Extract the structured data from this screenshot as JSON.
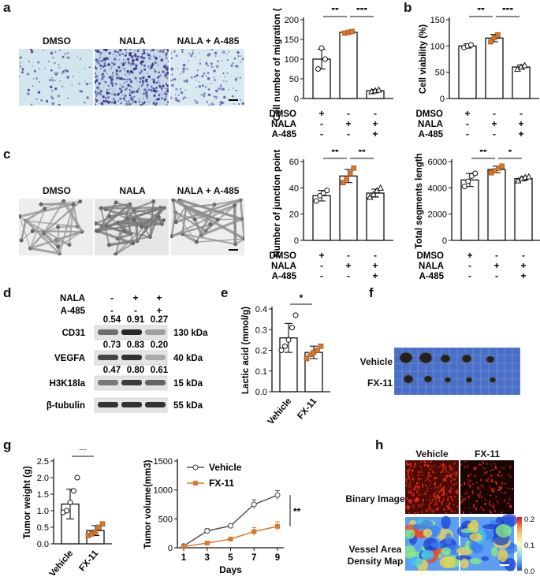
{
  "panels": {
    "a": "a",
    "b": "b",
    "c": "c",
    "d": "d",
    "e": "e",
    "f": "f",
    "g": "g",
    "h": "h"
  },
  "panel_a": {
    "images": [
      "DMSO",
      "NALA",
      "NALA + A-485"
    ]
  },
  "panel_c": {
    "images": [
      "DMSO",
      "NALA",
      "NALA + A-485"
    ]
  },
  "treat_rows": {
    "labels": [
      "DMSO",
      "NALA",
      "A-485"
    ],
    "signs": [
      [
        "+",
        "-",
        "-"
      ],
      [
        "-",
        "+",
        "+"
      ],
      [
        "-",
        "-",
        "+"
      ]
    ]
  },
  "panel_d": {
    "header_labels": [
      "NALA",
      "A-485"
    ],
    "header_signs": [
      [
        "-",
        "+",
        "+"
      ],
      [
        "-",
        "-",
        "+"
      ]
    ],
    "blots": [
      {
        "name": "CD31",
        "kda": "130 kDa",
        "values": [
          "0.54",
          "0.91",
          "0.27"
        ]
      },
      {
        "name": "VEGFA",
        "kda": "40 kDa",
        "values": [
          "0.73",
          "0.83",
          "0.20"
        ]
      },
      {
        "name": "H3K18la",
        "kda": "15 kDa",
        "values": [
          "0.47",
          "0.80",
          "0.61"
        ]
      },
      {
        "name": "β-tubulin",
        "kda": "55 kDa",
        "values": []
      }
    ]
  },
  "panel_f": {
    "rows": [
      "Vehicle",
      "FX-11"
    ]
  },
  "panel_h": {
    "cols": [
      "Vehicle",
      "FX-11"
    ],
    "rows": [
      "Binary Image",
      "Vessel Area",
      "Density Map"
    ],
    "scale": [
      "0.2",
      "0.1",
      "0.0"
    ]
  },
  "colors": {
    "accent": "#d9782d",
    "bar": "#ffffff",
    "axis": "#111111"
  },
  "chart_data": [
    {
      "id": "a_migration",
      "type": "bar",
      "ylabel": "Cell number of migration (%)",
      "ylim": [
        0,
        200
      ],
      "yticks": [
        "0",
        "50",
        "100",
        "150",
        "200"
      ],
      "categories": [
        "DMSO",
        "NALA",
        "NALA + A-485"
      ],
      "values": [
        100,
        168,
        20
      ],
      "errors": [
        25,
        3,
        3
      ],
      "points": [
        [
          75,
          128,
          100
        ],
        [
          166,
          168,
          170
        ],
        [
          18,
          20,
          22
        ]
      ],
      "sig": [
        "**",
        "***"
      ]
    },
    {
      "id": "b_viability",
      "type": "bar",
      "ylabel": "Cell viability (%)",
      "ylim": [
        0,
        150
      ],
      "yticks": [
        "0",
        "50",
        "100",
        "150"
      ],
      "categories": [
        "DMSO",
        "NALA",
        "NALA + A-485"
      ],
      "values": [
        100,
        115,
        60
      ],
      "errors": [
        4,
        7,
        4
      ],
      "points": [
        [
          97,
          100,
          102
        ],
        [
          108,
          116,
          121
        ],
        [
          56,
          60,
          63
        ]
      ],
      "sig": [
        "**",
        "***"
      ]
    },
    {
      "id": "c_junction",
      "type": "bar",
      "ylabel": "Number of junction points",
      "ylim": [
        0,
        60
      ],
      "yticks": [
        "0",
        "20",
        "40",
        "60"
      ],
      "categories": [
        "DMSO",
        "NALA",
        "NALA + A-485"
      ],
      "values": [
        34,
        49,
        36
      ],
      "errors": [
        4,
        5,
        3
      ],
      "points": [
        [
          30,
          34,
          36,
          38
        ],
        [
          44,
          47,
          51,
          55
        ],
        [
          33,
          35,
          38,
          40
        ]
      ],
      "sig": [
        "**",
        "**"
      ]
    },
    {
      "id": "c_segments",
      "type": "bar",
      "ylabel": "Total segments length",
      "ylim": [
        0,
        6000
      ],
      "yticks": [
        "0",
        "2000",
        "4000",
        "6000"
      ],
      "categories": [
        "DMSO",
        "NALA",
        "NALA + A-485"
      ],
      "values": [
        4600,
        5400,
        4700
      ],
      "errors": [
        500,
        250,
        150
      ],
      "points": [
        [
          4100,
          4500,
          4900,
          5100
        ],
        [
          5150,
          5300,
          5500,
          5650
        ],
        [
          4550,
          4700,
          4800,
          4850
        ]
      ],
      "sig": [
        "**",
        "*"
      ]
    },
    {
      "id": "e_lactic",
      "type": "bar",
      "ylabel": "Lactic acid (mmol/g)",
      "ylim": [
        0,
        0.4
      ],
      "yticks": [
        "0.0",
        "0.1",
        "0.2",
        "0.3",
        "0.4"
      ],
      "categories": [
        "Vehicle",
        "FX-11"
      ],
      "values": [
        0.26,
        0.19
      ],
      "errors": [
        0.07,
        0.03
      ],
      "points": [
        [
          0.2,
          0.22,
          0.25,
          0.31,
          0.37
        ],
        [
          0.16,
          0.18,
          0.19,
          0.2,
          0.22
        ]
      ],
      "sig": [
        "*"
      ]
    },
    {
      "id": "g_weight",
      "type": "bar",
      "ylabel": "Tumor weight (g)",
      "ylim": [
        0,
        2.5
      ],
      "yticks": [
        "0.0",
        "0.5",
        "1.0",
        "1.5",
        "2.0",
        "2.5"
      ],
      "categories": [
        "Vehicle",
        "FX-11"
      ],
      "values": [
        1.2,
        0.4
      ],
      "errors": [
        0.45,
        0.15
      ],
      "points": [
        [
          0.95,
          1.0,
          1.25,
          1.6,
          2.0
        ],
        [
          0.25,
          0.3,
          0.35,
          0.5,
          0.6
        ]
      ],
      "sig": [
        "**"
      ]
    },
    {
      "id": "g_volume",
      "type": "line",
      "xlabel": "Days",
      "ylabel": "Tumor volume(mm3)",
      "ylim": [
        0,
        1500
      ],
      "yticks": [
        "0",
        "500",
        "1000",
        "1500"
      ],
      "x": [
        1,
        3,
        5,
        7,
        9
      ],
      "series": [
        {
          "name": "Vehicle",
          "values": [
            30,
            290,
            380,
            750,
            910
          ],
          "errors": [
            10,
            40,
            30,
            80,
            80
          ]
        },
        {
          "name": "FX-11",
          "values": [
            20,
            80,
            150,
            280,
            370
          ],
          "errors": [
            5,
            20,
            20,
            70,
            80
          ]
        }
      ],
      "sig": [
        "**"
      ]
    }
  ]
}
